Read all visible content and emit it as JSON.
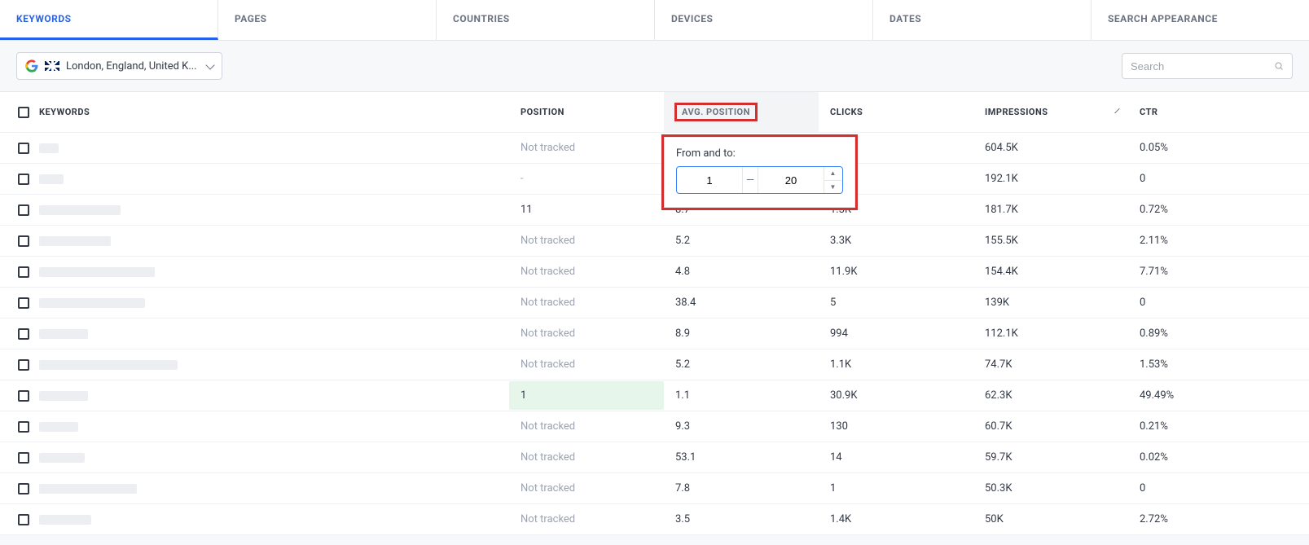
{
  "tabs": {
    "keywords": "KEYWORDS",
    "pages": "PAGES",
    "countries": "COUNTRIES",
    "devices": "DEVICES",
    "dates": "DATES",
    "search_appearance": "SEARCH APPEARANCE"
  },
  "toolbar": {
    "location_label": "London, England, United K...",
    "search_placeholder": "Search"
  },
  "columns": {
    "keywords": "KEYWORDS",
    "position": "POSITION",
    "avg_position": "AVG. POSITION",
    "clicks": "CLICKS",
    "impressions": "IMPRESSIONS",
    "ctr": "CTR"
  },
  "filter": {
    "label": "From and to:",
    "from": "1",
    "to": "20"
  },
  "rows": [
    {
      "kw_w": 24,
      "position": "Not tracked",
      "pos_muted": true,
      "avg": "",
      "clicks": "",
      "impressions": "604.5K",
      "ctr": "0.05%"
    },
    {
      "kw_w": 30,
      "position": "-",
      "pos_muted": true,
      "avg": "",
      "clicks": "",
      "impressions": "192.1K",
      "ctr": "0"
    },
    {
      "kw_w": 100,
      "position": "11",
      "pos_muted": false,
      "avg": "8.7",
      "clicks": "1.3K",
      "impressions": "181.7K",
      "ctr": "0.72%"
    },
    {
      "kw_w": 88,
      "position": "Not tracked",
      "pos_muted": true,
      "avg": "5.2",
      "clicks": "3.3K",
      "impressions": "155.5K",
      "ctr": "2.11%"
    },
    {
      "kw_w": 142,
      "position": "Not tracked",
      "pos_muted": true,
      "avg": "4.8",
      "clicks": "11.9K",
      "impressions": "154.4K",
      "ctr": "7.71%"
    },
    {
      "kw_w": 130,
      "position": "Not tracked",
      "pos_muted": true,
      "avg": "38.4",
      "clicks": "5",
      "impressions": "139K",
      "ctr": "0"
    },
    {
      "kw_w": 60,
      "position": "Not tracked",
      "pos_muted": true,
      "avg": "8.9",
      "clicks": "994",
      "impressions": "112.1K",
      "ctr": "0.89%"
    },
    {
      "kw_w": 170,
      "position": "Not tracked",
      "pos_muted": true,
      "avg": "5.2",
      "clicks": "1.1K",
      "impressions": "74.7K",
      "ctr": "1.53%"
    },
    {
      "kw_w": 60,
      "position": "1",
      "pos_muted": false,
      "pos_highlight": true,
      "avg": "1.1",
      "clicks": "30.9K",
      "impressions": "62.3K",
      "ctr": "49.49%"
    },
    {
      "kw_w": 48,
      "position": "Not tracked",
      "pos_muted": true,
      "avg": "9.3",
      "clicks": "130",
      "impressions": "60.7K",
      "ctr": "0.21%"
    },
    {
      "kw_w": 56,
      "position": "Not tracked",
      "pos_muted": true,
      "avg": "53.1",
      "clicks": "14",
      "impressions": "59.7K",
      "ctr": "0.02%"
    },
    {
      "kw_w": 120,
      "position": "Not tracked",
      "pos_muted": true,
      "avg": "7.8",
      "clicks": "1",
      "impressions": "50.3K",
      "ctr": "0"
    },
    {
      "kw_w": 64,
      "position": "Not tracked",
      "pos_muted": true,
      "avg": "3.5",
      "clicks": "1.4K",
      "impressions": "50K",
      "ctr": "2.72%"
    }
  ],
  "colors": {
    "accent": "#2563eb",
    "highlight_red": "#d32f2f",
    "highlight_green_bg": "#e6f6ea",
    "muted_text": "#9ca3af",
    "border": "#e5e7eb"
  }
}
